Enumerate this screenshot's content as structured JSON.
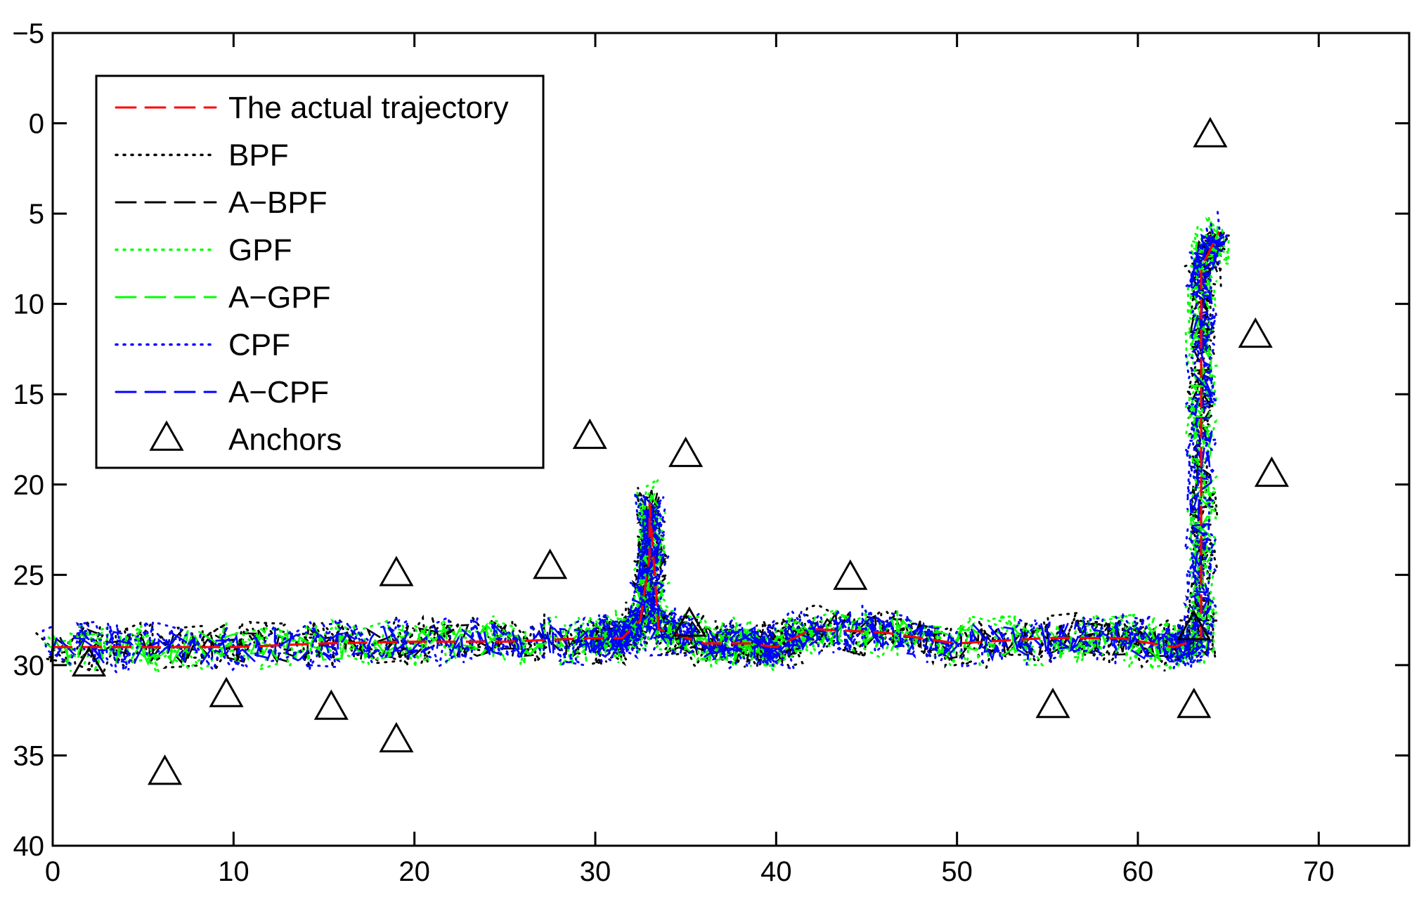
{
  "chart_data": {
    "type": "line",
    "title": "",
    "xlabel": "",
    "ylabel": "",
    "xlim": [
      0,
      75
    ],
    "ylim": [
      -5,
      40
    ],
    "y_reversed": true,
    "x_ticks": [
      "0",
      "10",
      "20",
      "30",
      "40",
      "50",
      "60",
      "70"
    ],
    "y_ticks": [
      "−5",
      "0",
      "5",
      "10",
      "15",
      "20",
      "25",
      "30",
      "35",
      "40"
    ],
    "grid": false,
    "legend_position": "top-left",
    "legend": [
      {
        "label": "The actual trajectory",
        "color": "#ff0000",
        "style": "dashed",
        "marker": "none"
      },
      {
        "label": "BPF",
        "color": "#000000",
        "style": "dotted",
        "marker": "none"
      },
      {
        "label": "A−BPF",
        "color": "#000000",
        "style": "dashed",
        "marker": "none"
      },
      {
        "label": "GPF",
        "color": "#00ff00",
        "style": "dotted",
        "marker": "none"
      },
      {
        "label": "A−GPF",
        "color": "#00ff00",
        "style": "dashed",
        "marker": "none"
      },
      {
        "label": "CPF",
        "color": "#0000ff",
        "style": "dotted",
        "marker": "none"
      },
      {
        "label": "A−CPF",
        "color": "#0000ff",
        "style": "dashed",
        "marker": "none"
      },
      {
        "label": "Anchors",
        "color": "#000000",
        "style": "none",
        "marker": "triangle"
      }
    ],
    "actual_trajectory": {
      "x": [
        0,
        5,
        10,
        15,
        20,
        25,
        30,
        31.5,
        32.5,
        33,
        33,
        33.5,
        36,
        38.5,
        40,
        42,
        46,
        50,
        55,
        59,
        62,
        63.5,
        63.5,
        63.5,
        63.5,
        63.5,
        64.5
      ],
      "y": [
        29,
        29,
        29,
        28.8,
        28.7,
        28.7,
        28.5,
        28.5,
        27.5,
        24,
        21,
        28,
        28.8,
        28.8,
        29,
        28,
        28.2,
        28.8,
        28.5,
        28.5,
        29,
        28.5,
        23,
        17,
        12,
        8,
        6
      ]
    },
    "estimates_note": "",
    "anchors": {
      "x": [
        2,
        6.2,
        9.6,
        15.4,
        19,
        19,
        27.5,
        29.7,
        35,
        35.2,
        44.1,
        55.3,
        63.1,
        63.1,
        64,
        66.5,
        67.4
      ],
      "y": [
        30,
        36,
        31.7,
        32.4,
        25,
        34.2,
        24.6,
        17.4,
        18.4,
        27.8,
        25.2,
        32.3,
        28,
        32.3,
        0.7,
        11.8,
        19.5
      ]
    }
  }
}
